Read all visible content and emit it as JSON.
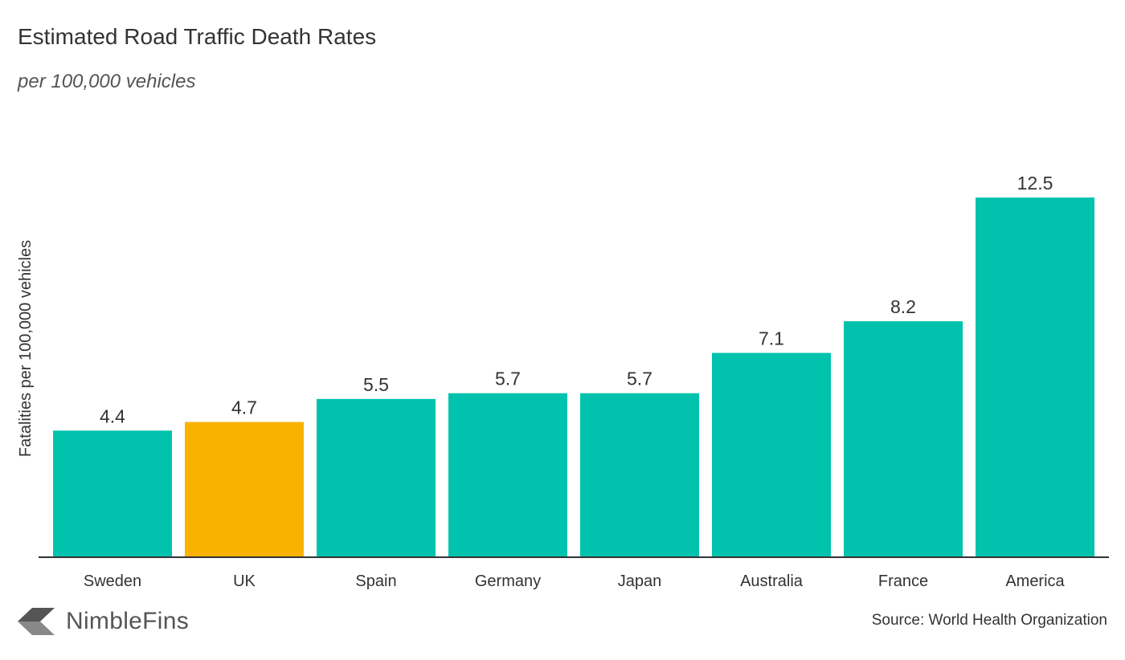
{
  "title": "Estimated Road Traffic Death Rates",
  "subtitle": "per 100,000 vehicles",
  "brand": {
    "name": "NimbleFins",
    "icon": "nimblefins-logo-icon"
  },
  "source": "Source: World Health Organization",
  "colors": {
    "default_bar": "#00C2AD",
    "highlight_bar": "#F9B200",
    "axis": "#333333"
  },
  "chart_data": {
    "type": "bar",
    "categories": [
      "Sweden",
      "UK",
      "Spain",
      "Germany",
      "Japan",
      "Australia",
      "France",
      "America"
    ],
    "values": [
      4.4,
      4.7,
      5.5,
      5.7,
      5.7,
      7.1,
      8.2,
      12.5
    ],
    "value_labels": [
      "4.4",
      "4.7",
      "5.5",
      "5.7",
      "5.7",
      "7.1",
      "8.2",
      "12.5"
    ],
    "highlight": "UK",
    "ylabel": "Fatalities per 100,000 vehicles",
    "ylim": [
      0,
      14.9
    ],
    "grid": false,
    "legend": "none"
  }
}
